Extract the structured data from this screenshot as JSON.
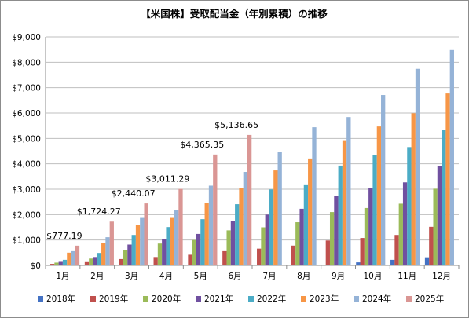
{
  "chart_data": {
    "type": "bar",
    "title": "【米国株】受取配当金（年別累積）の推移",
    "xlabel": "",
    "ylabel": "",
    "categories": [
      "1月",
      "2月",
      "3月",
      "4月",
      "5月",
      "6月",
      "7月",
      "8月",
      "9月",
      "10月",
      "11月",
      "12月"
    ],
    "ylim": [
      0,
      9000
    ],
    "y_ticks": [
      {
        "value": 0,
        "label": "$0"
      },
      {
        "value": 1000,
        "label": "$1,000"
      },
      {
        "value": 2000,
        "label": "$2,000"
      },
      {
        "value": 3000,
        "label": "$3,000"
      },
      {
        "value": 4000,
        "label": "$4,000"
      },
      {
        "value": 5000,
        "label": "$5,000"
      },
      {
        "value": 6000,
        "label": "$6,000"
      },
      {
        "value": 7000,
        "label": "$7,000"
      },
      {
        "value": 8000,
        "label": "$8,000"
      },
      {
        "value": 9000,
        "label": "$9,000"
      }
    ],
    "grid": true,
    "legend_position": "bottom",
    "series": [
      {
        "name": "2018年",
        "color": "#4472c4",
        "values": [
          0,
          0,
          0,
          0,
          0,
          0,
          0,
          0,
          30,
          120,
          220,
          320
        ]
      },
      {
        "name": "2019年",
        "color": "#c0504d",
        "values": [
          60,
          130,
          250,
          330,
          420,
          560,
          660,
          780,
          980,
          1080,
          1200,
          1520
        ]
      },
      {
        "name": "2020年",
        "color": "#9bbb59",
        "values": [
          110,
          270,
          600,
          860,
          1000,
          1380,
          1500,
          1700,
          2100,
          2260,
          2430,
          3020
        ]
      },
      {
        "name": "2021年",
        "color": "#7050a0",
        "values": [
          140,
          330,
          820,
          1030,
          1240,
          1760,
          2000,
          2230,
          2750,
          3050,
          3270,
          3910
        ]
      },
      {
        "name": "2022年",
        "color": "#4bacc6",
        "values": [
          220,
          490,
          1200,
          1510,
          1820,
          2410,
          2990,
          3190,
          3930,
          4330,
          4660,
          5350
        ]
      },
      {
        "name": "2023年",
        "color": "#f79646",
        "values": [
          500,
          870,
          1590,
          1870,
          2470,
          3060,
          3740,
          4210,
          4930,
          5470,
          5990,
          6770
        ]
      },
      {
        "name": "2024年",
        "color": "#95b3d7",
        "values": [
          560,
          1110,
          1870,
          2180,
          3140,
          3680,
          4480,
          5440,
          5840,
          6710,
          7740,
          8480
        ]
      },
      {
        "name": "2025年",
        "color": "#da9694",
        "values": [
          777.19,
          1724.27,
          2440.07,
          3011.29,
          4365.35,
          5136.65,
          null,
          null,
          null,
          null,
          null,
          null
        ]
      }
    ],
    "annotations": [
      {
        "category": "1月",
        "text": "$777.19"
      },
      {
        "category": "2月",
        "text": "$1,724.27"
      },
      {
        "category": "3月",
        "text": "$2,440.07"
      },
      {
        "category": "4月",
        "text": "$3,011.29"
      },
      {
        "category": "5月",
        "text": "$4,365.35"
      },
      {
        "category": "6月",
        "text": "$5,136.65"
      }
    ]
  }
}
